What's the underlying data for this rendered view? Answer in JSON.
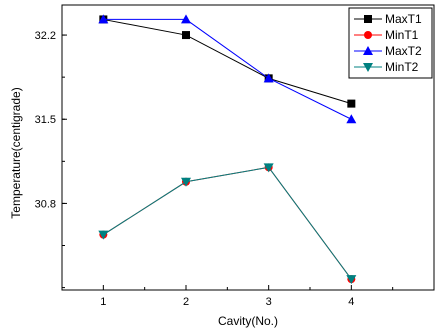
{
  "chart_data": {
    "type": "line",
    "xlabel": "Cavity(No.)",
    "ylabel": "Temperature(centigrade)",
    "categories": [
      "1",
      "2",
      "3",
      "4"
    ],
    "y_ticks": [
      "30.8",
      "31.5",
      "32.2"
    ],
    "ylim": [
      30.08,
      32.45
    ],
    "grid": false,
    "legend_position": "top-right",
    "series": [
      {
        "name": "MaxT1",
        "marker": "square",
        "color": "#000000",
        "values": [
          32.33,
          32.2,
          31.84,
          31.63
        ]
      },
      {
        "name": "MinT1",
        "marker": "circle",
        "color": "#ff0000",
        "values": [
          30.54,
          30.98,
          31.1,
          30.17
        ]
      },
      {
        "name": "MaxT2",
        "marker": "triangle-up",
        "color": "#0000ff",
        "values": [
          32.33,
          32.33,
          31.84,
          31.5
        ]
      },
      {
        "name": "MinT2",
        "marker": "triangle-down",
        "color": "#008080",
        "values": [
          30.54,
          30.98,
          31.1,
          30.17
        ]
      }
    ]
  }
}
